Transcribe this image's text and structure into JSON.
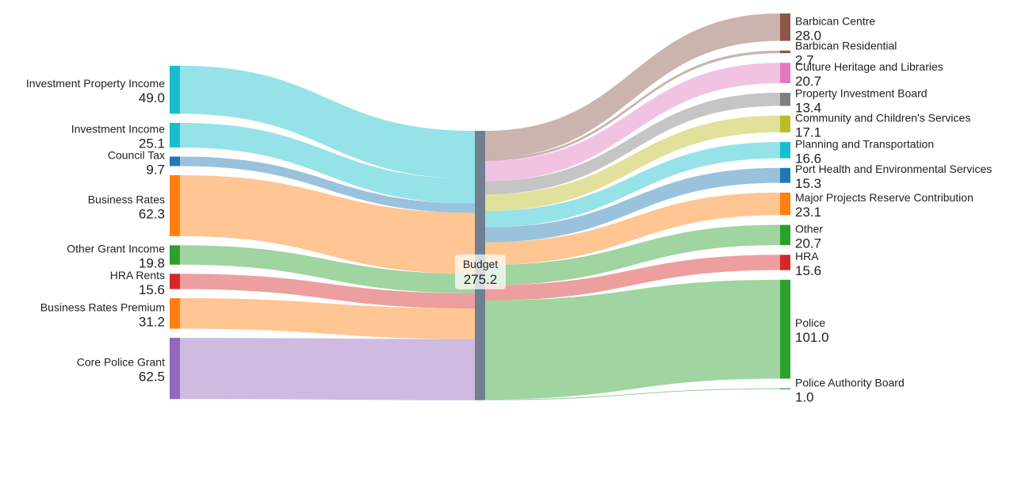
{
  "chart_data": {
    "type": "sankey",
    "hub": {
      "name": "Budget",
      "value": "275.2",
      "color": "#708090"
    },
    "sources": [
      {
        "name": "Investment Property Income",
        "value": 49.0,
        "label": "49.0",
        "color": "#17becf"
      },
      {
        "name": "Investment Income",
        "value": 25.1,
        "label": "25.1",
        "color": "#17becf"
      },
      {
        "name": "Council Tax",
        "value": 9.7,
        "label": "9.7",
        "color": "#1f77b4"
      },
      {
        "name": "Business Rates",
        "value": 62.3,
        "label": "62.3",
        "color": "#ff7f0e"
      },
      {
        "name": "Other Grant Income",
        "value": 19.8,
        "label": "19.8",
        "color": "#2ca02c"
      },
      {
        "name": "HRA Rents",
        "value": 15.6,
        "label": "15.6",
        "color": "#d62728"
      },
      {
        "name": "Business Rates Premium",
        "value": 31.2,
        "label": "31.2",
        "color": "#ff7f0e"
      },
      {
        "name": "Core Police Grant",
        "value": 62.5,
        "label": "62.5",
        "color": "#9467bd"
      }
    ],
    "targets": [
      {
        "name": "Barbican Centre",
        "value": 28.0,
        "label": "28.0",
        "color": "#8c564b"
      },
      {
        "name": "Barbican Residential",
        "value": 2.7,
        "label": "2.7",
        "color": "#8c564b"
      },
      {
        "name": "Culture Heritage and Libraries",
        "value": 20.7,
        "label": "20.7",
        "color": "#e377c2"
      },
      {
        "name": "Property Investment Board",
        "value": 13.4,
        "label": "13.4",
        "color": "#7f7f7f"
      },
      {
        "name": "Community and Children's Services",
        "value": 17.1,
        "label": "17.1",
        "color": "#bcbd22"
      },
      {
        "name": "Planning and Transportation",
        "value": 16.6,
        "label": "16.6",
        "color": "#17becf"
      },
      {
        "name": "Port Health and Environmental Services",
        "value": 15.3,
        "label": "15.3",
        "color": "#1f77b4"
      },
      {
        "name": "Major Projects Reserve Contribution",
        "value": 23.1,
        "label": "23.1",
        "color": "#ff7f0e"
      },
      {
        "name": "Other",
        "value": 20.7,
        "label": "20.7",
        "color": "#2ca02c"
      },
      {
        "name": "HRA",
        "value": 15.6,
        "label": "15.6",
        "color": "#d62728"
      },
      {
        "name": "Police",
        "value": 101.0,
        "label": "101.0",
        "color": "#2ca02c"
      },
      {
        "name": "Police Authority Board",
        "value": 1.0,
        "label": "1.0",
        "color": "#2ca02c"
      }
    ]
  }
}
